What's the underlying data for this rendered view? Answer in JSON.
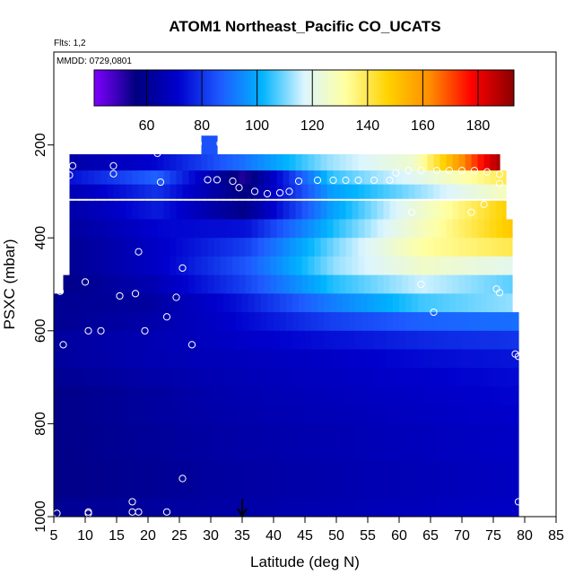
{
  "chart_data": {
    "type": "heatmap",
    "title": "ATOM1 Northeast_Pacific CO_UCATS",
    "annotations": [
      "Flts: 1,2",
      "MMDD: 0729,0801"
    ],
    "xlabel": "Latitude (deg N)",
    "ylabel": "PSXC (mbar)",
    "xlim": [
      5,
      85
    ],
    "ylim": [
      1000,
      0
    ],
    "xticks": [
      "5",
      "10",
      "15",
      "20",
      "25",
      "30",
      "35",
      "40",
      "45",
      "50",
      "55",
      "60",
      "65",
      "70",
      "75",
      "80",
      "85"
    ],
    "yticks": [
      "200",
      "400",
      "600",
      "800",
      "1000"
    ],
    "colorbar": {
      "range": [
        41,
        193
      ],
      "ticks": [
        "60",
        "80",
        "100",
        "120",
        "140",
        "160",
        "180"
      ],
      "colors": [
        "#7f00ff",
        "#00007f",
        "#0000cd",
        "#1e5aff",
        "#00b4ff",
        "#dcf5ff",
        "#ffffa0",
        "#ffd200",
        "#ff8c00",
        "#ff0000",
        "#8b0000"
      ]
    },
    "marker_latitude": 35,
    "layers": [
      {
        "p": 200,
        "lat": [
          28.5,
          31
        ],
        "co": [
          85
        ]
      },
      {
        "p": 240,
        "lat": [
          7.5,
          76
        ],
        "co": [
          64,
          72,
          90,
          112,
          125,
          190
        ]
      },
      {
        "p": 270,
        "lat": [
          7.5,
          77
        ],
        "co": [
          74,
          88,
          52,
          105,
          120,
          140
        ]
      },
      {
        "p": 300,
        "lat": [
          7.5,
          77
        ],
        "co": [
          66,
          80,
          56,
          98,
          112,
          128
        ]
      },
      {
        "p": 340,
        "lat": [
          7.5,
          77
        ],
        "co": [
          64,
          76,
          58,
          98,
          124,
          148
        ]
      },
      {
        "p": 380,
        "lat": [
          7.5,
          78
        ],
        "co": [
          62,
          72,
          74,
          104,
          128,
          150
        ]
      },
      {
        "p": 420,
        "lat": [
          7.5,
          78
        ],
        "co": [
          60,
          70,
          82,
          110,
          132,
          140
        ]
      },
      {
        "p": 460,
        "lat": [
          7.5,
          78
        ],
        "co": [
          60,
          70,
          86,
          112,
          126,
          120
        ]
      },
      {
        "p": 500,
        "lat": [
          6.5,
          78
        ],
        "co": [
          58,
          66,
          82,
          104,
          116,
          108
        ]
      },
      {
        "p": 540,
        "lat": [
          5,
          78
        ],
        "co": [
          60,
          62,
          74,
          92,
          106,
          112
        ]
      },
      {
        "p": 580,
        "lat": [
          5,
          79
        ],
        "co": [
          60,
          64,
          72,
          82,
          88,
          90
        ]
      },
      {
        "p": 620,
        "lat": [
          5,
          79
        ],
        "co": [
          62,
          66,
          70,
          74,
          78,
          80
        ]
      },
      {
        "p": 660,
        "lat": [
          5,
          79
        ],
        "co": [
          62,
          66,
          68,
          70,
          73,
          75
        ]
      },
      {
        "p": 700,
        "lat": [
          5,
          79
        ],
        "co": [
          60,
          64,
          67,
          69,
          71,
          73
        ]
      },
      {
        "p": 740,
        "lat": [
          5,
          79
        ],
        "co": [
          58,
          62,
          66,
          68,
          70,
          72
        ]
      },
      {
        "p": 780,
        "lat": [
          5,
          79
        ],
        "co": [
          58,
          62,
          65,
          67,
          69,
          71
        ]
      },
      {
        "p": 820,
        "lat": [
          5,
          79
        ],
        "co": [
          58,
          61,
          64,
          66,
          68,
          70
        ]
      },
      {
        "p": 860,
        "lat": [
          5,
          79
        ],
        "co": [
          58,
          61,
          64,
          66,
          68,
          70
        ]
      },
      {
        "p": 900,
        "lat": [
          5,
          79
        ],
        "co": [
          58,
          60,
          63,
          65,
          67,
          69
        ]
      },
      {
        "p": 940,
        "lat": [
          5,
          79
        ],
        "co": [
          58,
          60,
          63,
          65,
          67,
          69
        ]
      },
      {
        "p": 980,
        "lat": [
          5,
          79
        ],
        "co": [
          60,
          62,
          64,
          66,
          68,
          70
        ]
      }
    ],
    "observations": [
      [
        8,
        245
      ],
      [
        7.5,
        265
      ],
      [
        14.5,
        245
      ],
      [
        14.5,
        262
      ],
      [
        21.5,
        218
      ],
      [
        22,
        280
      ],
      [
        28,
        197
      ],
      [
        29.5,
        275
      ],
      [
        31,
        275
      ],
      [
        31.5,
        197
      ],
      [
        33.5,
        278
      ],
      [
        34.5,
        292
      ],
      [
        37,
        300
      ],
      [
        39,
        305
      ],
      [
        41,
        303
      ],
      [
        42.5,
        300
      ],
      [
        44,
        278
      ],
      [
        47,
        276
      ],
      [
        49.5,
        276
      ],
      [
        51.5,
        276
      ],
      [
        53.5,
        276
      ],
      [
        56,
        276
      ],
      [
        58.5,
        276
      ],
      [
        59.5,
        260
      ],
      [
        61.5,
        255
      ],
      [
        63.5,
        255
      ],
      [
        66,
        255
      ],
      [
        68,
        255
      ],
      [
        70,
        255
      ],
      [
        72,
        255
      ],
      [
        74,
        258
      ],
      [
        76,
        263
      ],
      [
        76,
        283
      ],
      [
        73.5,
        328
      ],
      [
        71.5,
        345
      ],
      [
        62,
        345
      ],
      [
        18.5,
        430
      ],
      [
        25.5,
        465
      ],
      [
        10,
        495
      ],
      [
        15.5,
        525
      ],
      [
        18,
        520
      ],
      [
        6,
        515
      ],
      [
        63.5,
        500
      ],
      [
        65.5,
        560
      ],
      [
        75.5,
        510
      ],
      [
        76,
        518
      ],
      [
        24.5,
        528
      ],
      [
        23,
        570
      ],
      [
        19.5,
        600
      ],
      [
        12.5,
        600
      ],
      [
        10.5,
        600
      ],
      [
        6.5,
        630
      ],
      [
        27,
        630
      ],
      [
        78.5,
        650
      ],
      [
        79,
        655
      ],
      [
        25.5,
        918
      ],
      [
        17.5,
        968
      ],
      [
        18.5,
        990
      ],
      [
        17.5,
        990
      ],
      [
        10.5,
        990
      ],
      [
        10.5,
        993
      ],
      [
        5.5,
        993
      ],
      [
        23,
        990
      ],
      [
        79,
        968
      ]
    ]
  }
}
